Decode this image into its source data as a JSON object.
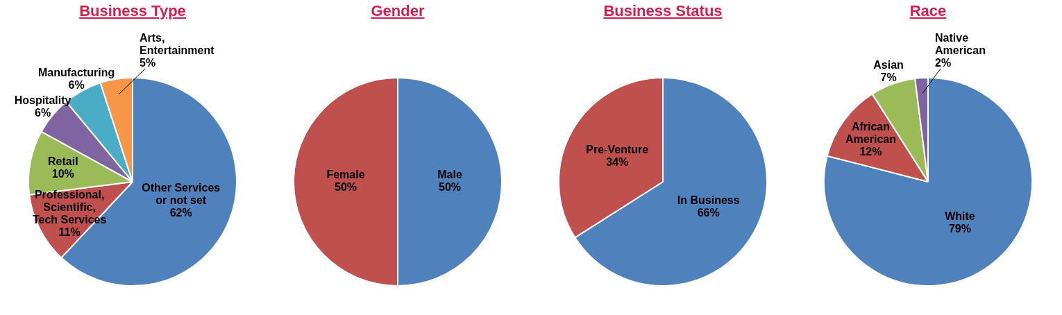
{
  "chart_data": [
    {
      "type": "pie",
      "title": "Business Type",
      "categories": [
        "Other Services or not set",
        "Professional, Scientific, Tech Services",
        "Retail",
        "Hospitality",
        "Manufacturing",
        "Arts, Entertainment"
      ],
      "values": [
        62,
        11,
        10,
        6,
        6,
        5
      ],
      "value_labels": [
        "62%",
        "11%",
        "10%",
        "6%",
        "6%",
        "5%"
      ],
      "colors": [
        "#4f81bd",
        "#c0504d",
        "#9bbb59",
        "#8064a2",
        "#4bacc6",
        "#f79646"
      ]
    },
    {
      "type": "pie",
      "title": "Gender",
      "categories": [
        "Male",
        "Female"
      ],
      "values": [
        50,
        50
      ],
      "value_labels": [
        "50%",
        "50%"
      ],
      "colors": [
        "#4f81bd",
        "#c0504d"
      ]
    },
    {
      "type": "pie",
      "title": "Business Status",
      "categories": [
        "In Business",
        "Pre-Venture"
      ],
      "values": [
        66,
        34
      ],
      "value_labels": [
        "66%",
        "34%"
      ],
      "colors": [
        "#4f81bd",
        "#c0504d"
      ]
    },
    {
      "type": "pie",
      "title": "Race",
      "categories": [
        "White",
        "African American",
        "Asian",
        "Native American"
      ],
      "values": [
        79,
        12,
        7,
        2
      ],
      "value_labels": [
        "79%",
        "12%",
        "7%",
        "2%"
      ],
      "colors": [
        "#4f81bd",
        "#c0504d",
        "#9bbb59",
        "#8064a2"
      ]
    }
  ]
}
